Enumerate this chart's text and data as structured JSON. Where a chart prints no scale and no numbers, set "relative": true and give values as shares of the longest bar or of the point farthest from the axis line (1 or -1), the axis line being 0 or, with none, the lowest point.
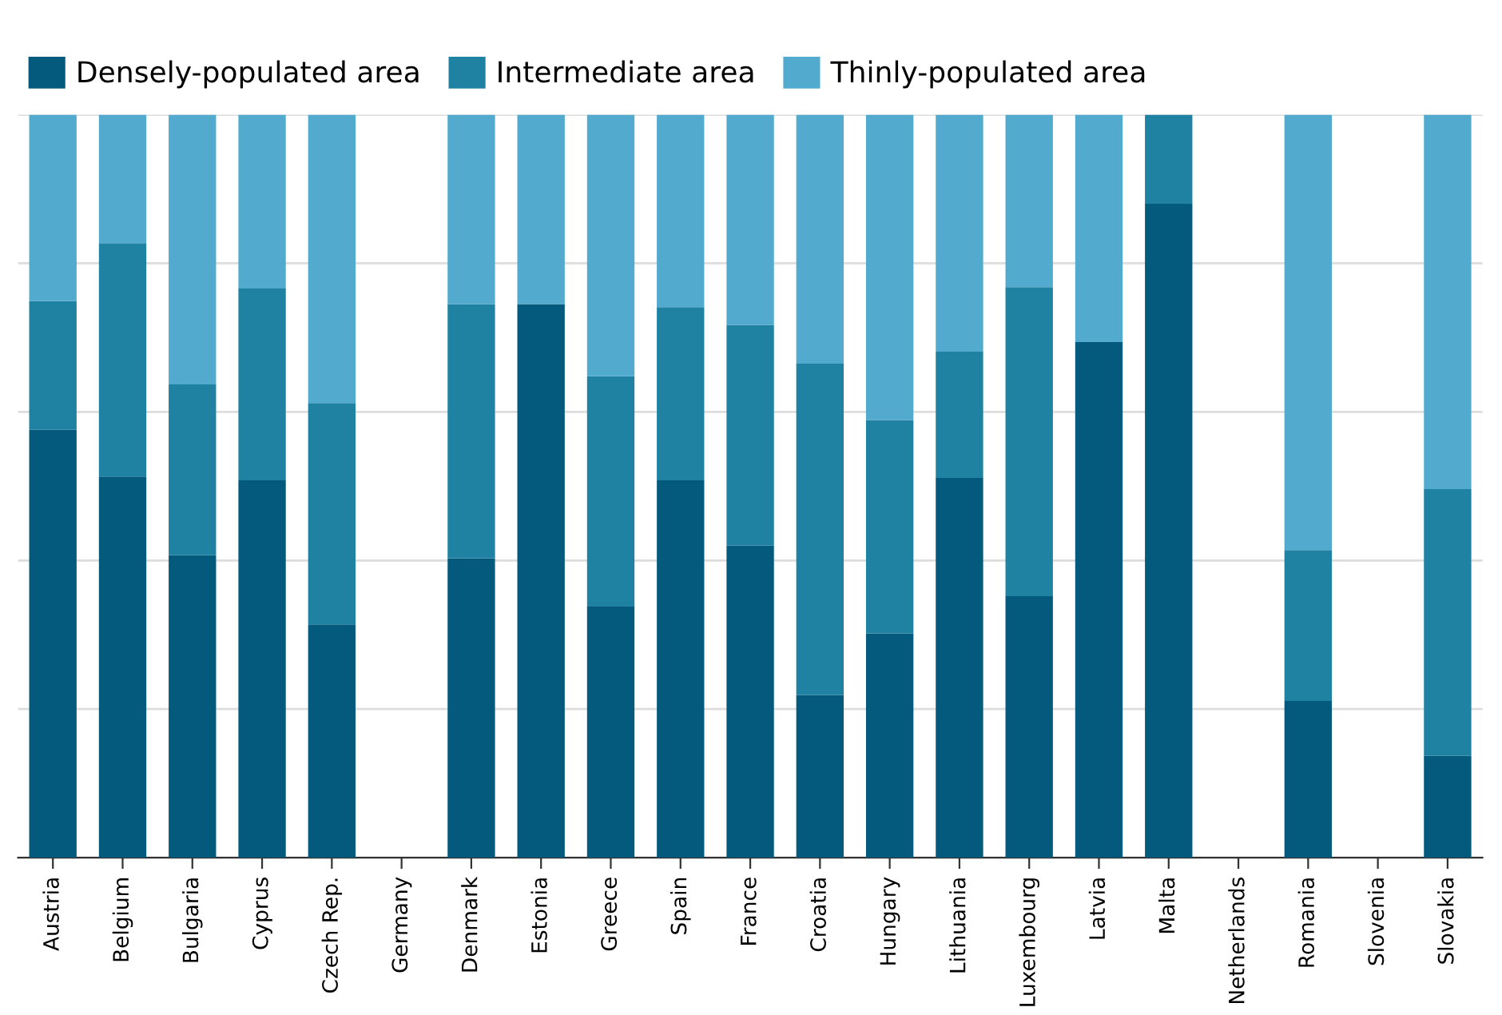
{
  "chart_data": {
    "type": "bar",
    "stacked": true,
    "relative": true,
    "grid": "y",
    "legend": "top left",
    "categories": [
      "Austria",
      "Belgium",
      "Bulgaria",
      "Cyprus",
      "Czech Rep.",
      "Germany",
      "Denmark",
      "Estonia",
      "Greece",
      "Spain",
      "France",
      "Croatia",
      "Hungary",
      "Lithuania",
      "Luxembourg",
      "Latvia",
      "Malta",
      "Netherlands",
      "Romania",
      "Slovenia",
      "Slovakia"
    ],
    "series": [
      {
        "name": "Densely-populated area",
        "color": "#045a7d",
        "values": [
          0.576,
          0.513,
          0.407,
          0.508,
          0.314,
          null,
          0.403,
          0.745,
          0.338,
          0.508,
          0.42,
          0.219,
          0.302,
          0.511,
          0.352,
          0.694,
          0.88,
          null,
          0.211,
          null,
          0.137
        ]
      },
      {
        "name": "Intermediate area",
        "color": "#1f82a3",
        "values": [
          0.173,
          0.314,
          0.23,
          0.258,
          0.298,
          null,
          0.342,
          0,
          0.31,
          0.233,
          0.297,
          0.446,
          0.287,
          0.17,
          0.416,
          0,
          0.12,
          null,
          0.203,
          null,
          0.359
        ]
      },
      {
        "name": "Thinly-populated area",
        "color": "#52abcf",
        "values": [
          0.251,
          0.173,
          0.363,
          0.234,
          0.388,
          null,
          0.255,
          0.255,
          0.352,
          0.259,
          0.283,
          0.335,
          0.411,
          0.319,
          0.232,
          0.306,
          0,
          null,
          0.586,
          null,
          0.504
        ]
      }
    ]
  }
}
